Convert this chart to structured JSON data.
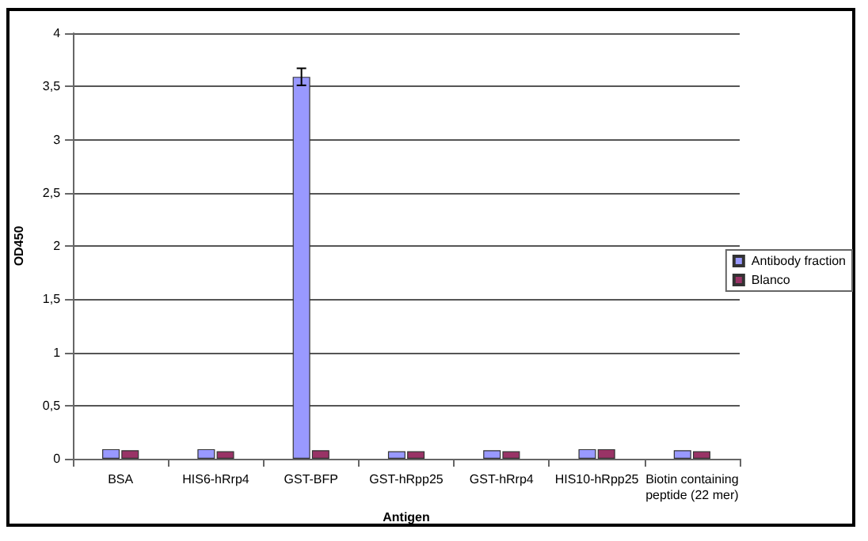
{
  "chart_data": {
    "type": "bar",
    "xlabel": "Antigen",
    "ylabel": "OD450",
    "categories": [
      "BSA",
      "HIS6-hRrp4",
      "GST-BFP",
      "GST-hRpp25",
      "GST-hRrp4",
      "HIS10-hRpp25",
      "Biotin containing\npeptide (22 mer)"
    ],
    "series": [
      {
        "name": "Antibody fraction",
        "color": "#9999ff",
        "values": [
          0.09,
          0.09,
          3.59,
          0.07,
          0.08,
          0.09,
          0.08
        ],
        "errors": [
          null,
          null,
          0.08,
          null,
          null,
          null,
          null
        ]
      },
      {
        "name": "Blanco",
        "color": "#993366",
        "values": [
          0.08,
          0.07,
          0.08,
          0.07,
          0.07,
          0.09,
          0.07
        ]
      }
    ],
    "ylim": [
      0,
      4
    ],
    "yticks": [
      0,
      {
        "value": 0.5,
        "label": "0,5"
      },
      1,
      {
        "value": 1.5,
        "label": "1,5"
      },
      2,
      {
        "value": 2.5,
        "label": "2,5"
      },
      3,
      {
        "value": 3.5,
        "label": "3,5"
      },
      4
    ],
    "grid": "y",
    "legend": "right"
  }
}
